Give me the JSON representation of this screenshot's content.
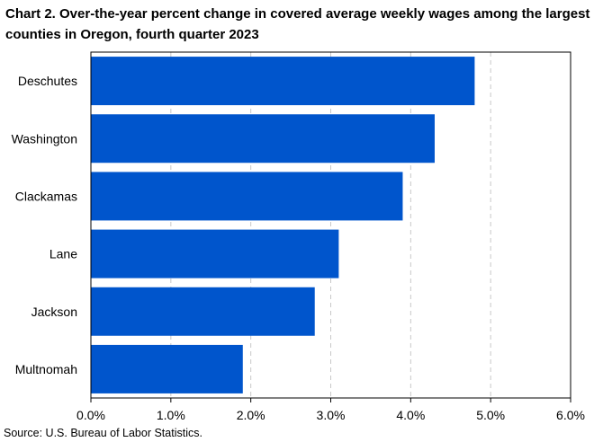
{
  "title": "Chart 2. Over-the-year percent change in covered average weekly wages among the largest counties in Oregon, fourth quarter 2023",
  "source": "Source: U.S. Bureau of Labor Statistics.",
  "colors": {
    "bar": "#0055cc",
    "grid": "#c8c8c8",
    "frame": "#000000"
  },
  "chart_data": {
    "type": "bar",
    "orientation": "horizontal",
    "categories": [
      "Deschutes",
      "Washington",
      "Clackamas",
      "Lane",
      "Jackson",
      "Multnomah"
    ],
    "values": [
      4.8,
      4.3,
      3.9,
      3.1,
      2.8,
      1.9
    ],
    "xlim": [
      0,
      6
    ],
    "x_ticks": [
      "0.0%",
      "1.0%",
      "2.0%",
      "3.0%",
      "4.0%",
      "5.0%",
      "6.0%"
    ],
    "grid": "vertical dashed",
    "legend": "none"
  }
}
